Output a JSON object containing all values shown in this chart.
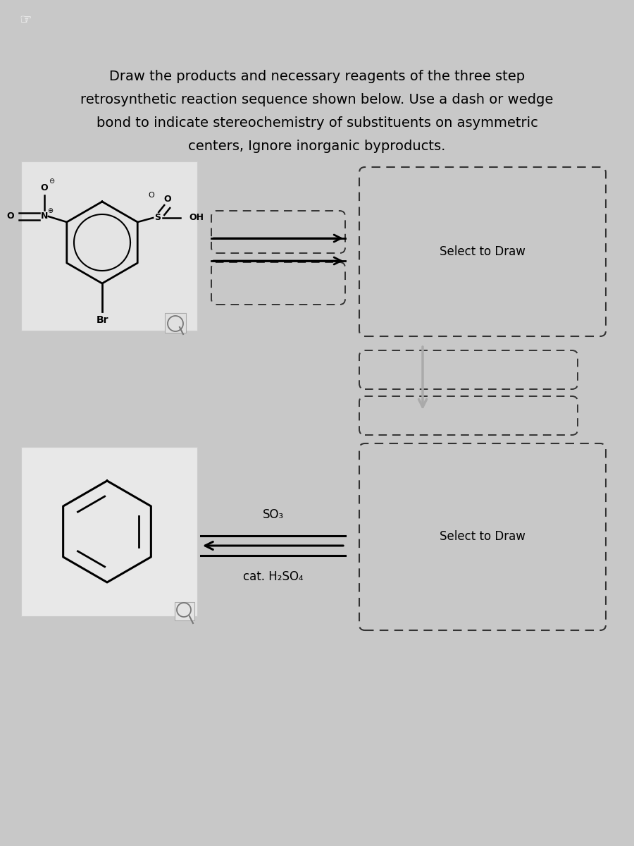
{
  "title_lines": [
    "Draw the products and necessary reagents of the three step",
    "retrosynthetic reaction sequence shown below. Use a dash or wedge",
    "bond to indicate stereochemistry of substituents on asymmetric",
    "centers, Ignore inorganic byproducts."
  ],
  "title_fontsize": 14,
  "bg_color": "#e8e8e8",
  "header_color": "#c0392b",
  "mol_box_color": "#e0e0e0",
  "so3_label": "SO₃",
  "cat_label": "cat. H₂SO₄",
  "select_draw": "Select to Draw",
  "cursor_icon": "☞"
}
